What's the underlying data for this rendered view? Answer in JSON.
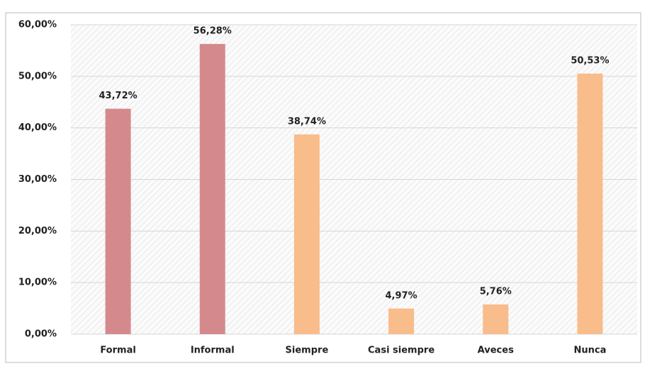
{
  "chart_data": {
    "type": "bar",
    "categories": [
      "Formal",
      "Informal",
      "Siempre",
      "Casi siempre",
      "Aveces",
      "Nunca"
    ],
    "values": [
      43.72,
      56.28,
      38.74,
      4.97,
      5.76,
      50.53
    ],
    "value_labels": [
      "43,72%",
      "56,28%",
      "38,74%",
      "4,97%",
      "5,76%",
      "50,53%"
    ],
    "colors": [
      "#d48a8c",
      "#d48a8c",
      "#f9bc8b",
      "#f9bc8b",
      "#f9bc8b",
      "#f9bc8b"
    ],
    "ylim": [
      0,
      60
    ],
    "yticks": [
      {
        "value": 0,
        "label": "0,00%"
      },
      {
        "value": 10,
        "label": "10,00%"
      },
      {
        "value": 20,
        "label": "20,00%"
      },
      {
        "value": 30,
        "label": "30,00%"
      },
      {
        "value": 40,
        "label": "40,00%"
      },
      {
        "value": 50,
        "label": "50,00%"
      },
      {
        "value": 60,
        "label": "60,00%"
      }
    ],
    "grid": true
  }
}
